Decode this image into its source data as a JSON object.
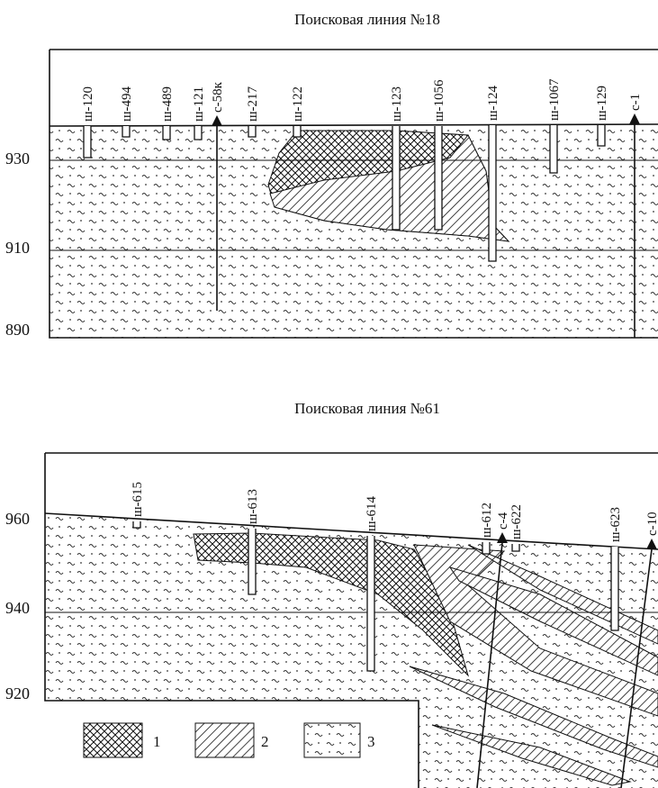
{
  "sections": [
    {
      "title": "Поисковая линия №18",
      "elevations": [
        930,
        910,
        890
      ],
      "wells": [
        "ш-120",
        "ш-494",
        "ш-489",
        "ш-121",
        "с-58к",
        "ш-217",
        "ш-122",
        "ш-123",
        "ш-1056",
        "ш-124",
        "ш-1067",
        "ш-129",
        "с-1"
      ]
    },
    {
      "title": "Поисковая линия №61",
      "elevations": [
        960,
        940,
        920
      ],
      "wells": [
        "ш-615",
        "ш-613",
        "ш-614",
        "ш-612",
        "с-4",
        "ш-622",
        "ш-623",
        "с-10"
      ]
    }
  ],
  "legend": [
    {
      "label": "1"
    },
    {
      "label": "2"
    },
    {
      "label": "3"
    }
  ]
}
